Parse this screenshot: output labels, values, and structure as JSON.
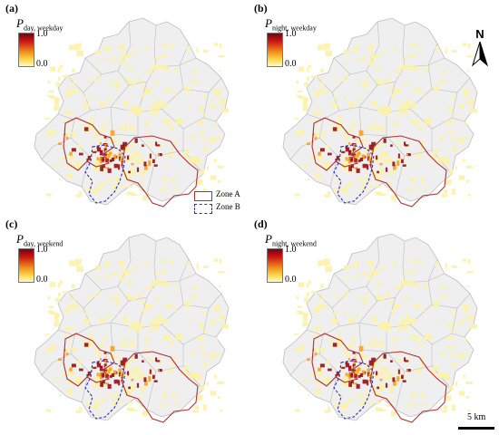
{
  "panels": [
    {
      "label": "(a)",
      "var": "P",
      "sub": "day, weekday"
    },
    {
      "label": "(b)",
      "var": "P",
      "sub": "night, weekday"
    },
    {
      "label": "(c)",
      "var": "P",
      "sub": "day, weekend"
    },
    {
      "label": "(d)",
      "var": "P",
      "sub": "night, weekend"
    }
  ],
  "colorbar": {
    "max": "1.0",
    "min": "0.0",
    "colors": [
      "#7a0010",
      "#cc1a14",
      "#f08a1c",
      "#fbd84a",
      "#fff8cc"
    ]
  },
  "legend": {
    "zone_a": "Zone A",
    "zone_b": "Zone B",
    "zone_a_color": "#b5302c",
    "zone_b_color": "#2a2ad0"
  },
  "north_arrow": {
    "label": "N"
  },
  "scale_bar": {
    "label": "5 km"
  },
  "colors": {
    "district_fill": "#efefef",
    "district_border": "#bdbdbd",
    "hotspot_low": "#fdf2a8",
    "hotspot_mid": "#f4a21e",
    "hotspot_high": "#9b0d14"
  }
}
